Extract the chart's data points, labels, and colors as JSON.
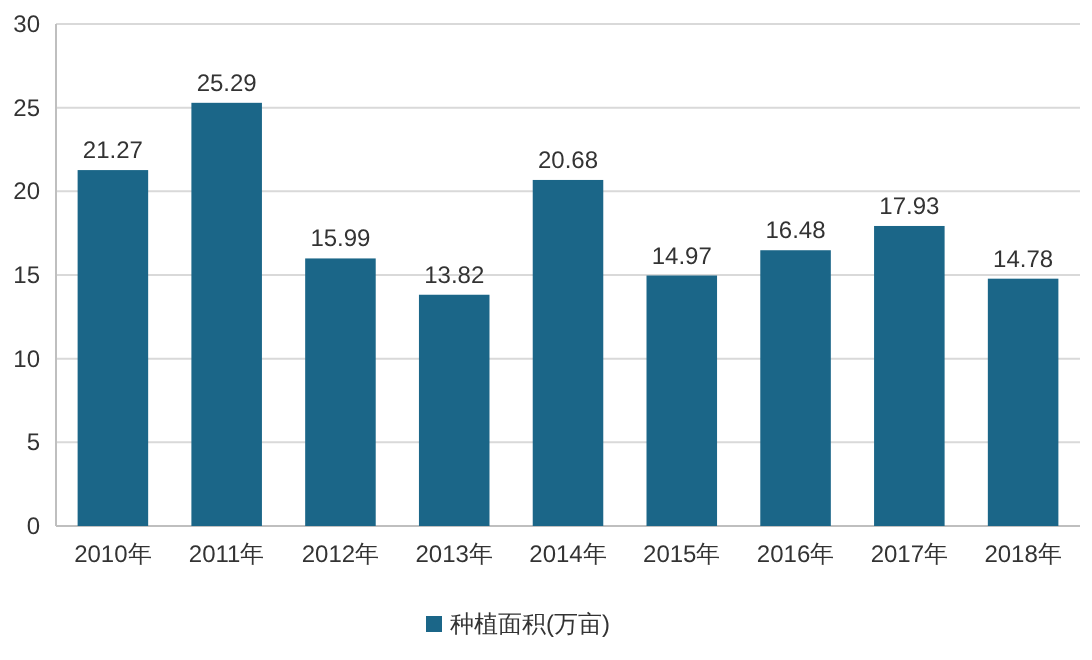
{
  "chart_data": {
    "type": "bar",
    "categories": [
      "2010年",
      "2011年",
      "2012年",
      "2013年",
      "2014年",
      "2015年",
      "2016年",
      "2017年",
      "2018年"
    ],
    "series": [
      {
        "name": "种植面积(万亩)",
        "color": "#1b6688",
        "values": [
          21.27,
          25.29,
          15.99,
          13.82,
          20.68,
          14.97,
          16.48,
          17.93,
          14.78
        ]
      }
    ],
    "ylim": [
      0,
      30
    ],
    "yticks": [
      0,
      5,
      10,
      15,
      20,
      25,
      30
    ],
    "grid": "y",
    "legend": "bottom",
    "data_labels": true
  }
}
